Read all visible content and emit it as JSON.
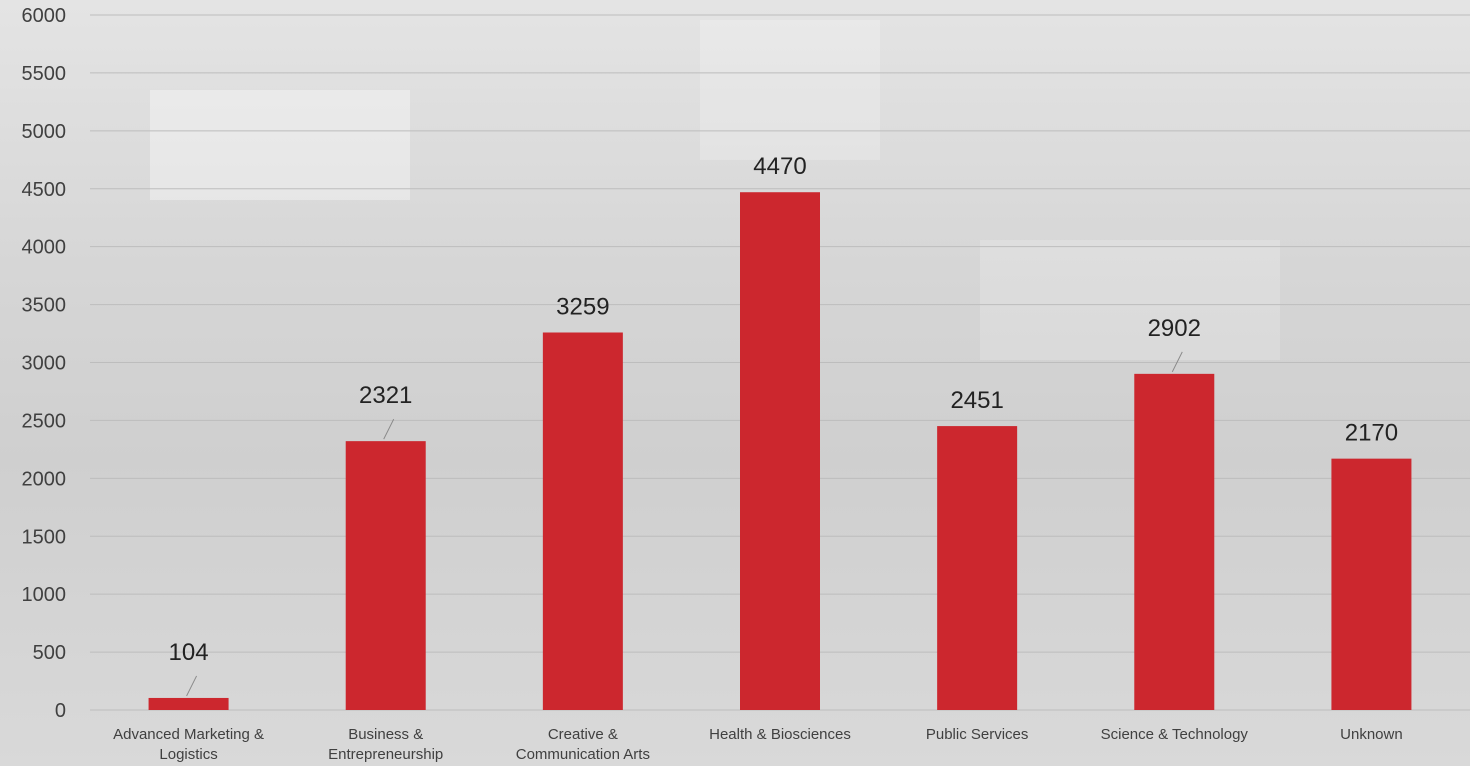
{
  "colors": {
    "bar": "#cc272e",
    "grid": "#bdbdbd",
    "text": "#404040"
  },
  "chart_data": {
    "type": "bar",
    "title": "",
    "xlabel": "",
    "ylabel": "",
    "ylim": [
      0,
      6000
    ],
    "ytick_step": 500,
    "grid": true,
    "legend": "none",
    "categories": [
      "Advanced Marketing  & Logistics",
      "Business & Entrepreneurship",
      "Creative & Communication Arts",
      "Health & Biosciences",
      "Public Services",
      "Science & Technology",
      "Unknown"
    ],
    "category_lines": [
      [
        "Advanced Marketing  &",
        "Logistics"
      ],
      [
        "Business &",
        "Entrepreneurship"
      ],
      [
        "Creative &",
        "Communication Arts"
      ],
      [
        "Health & Biosciences"
      ],
      [
        "Public Services"
      ],
      [
        "Science & Technology"
      ],
      [
        "Unknown"
      ]
    ],
    "values": [
      104,
      2321,
      3259,
      4470,
      2451,
      2902,
      2170
    ],
    "data_labels": [
      "104",
      "2321",
      "3259",
      "4470",
      "2451",
      "2902",
      "2170"
    ]
  }
}
